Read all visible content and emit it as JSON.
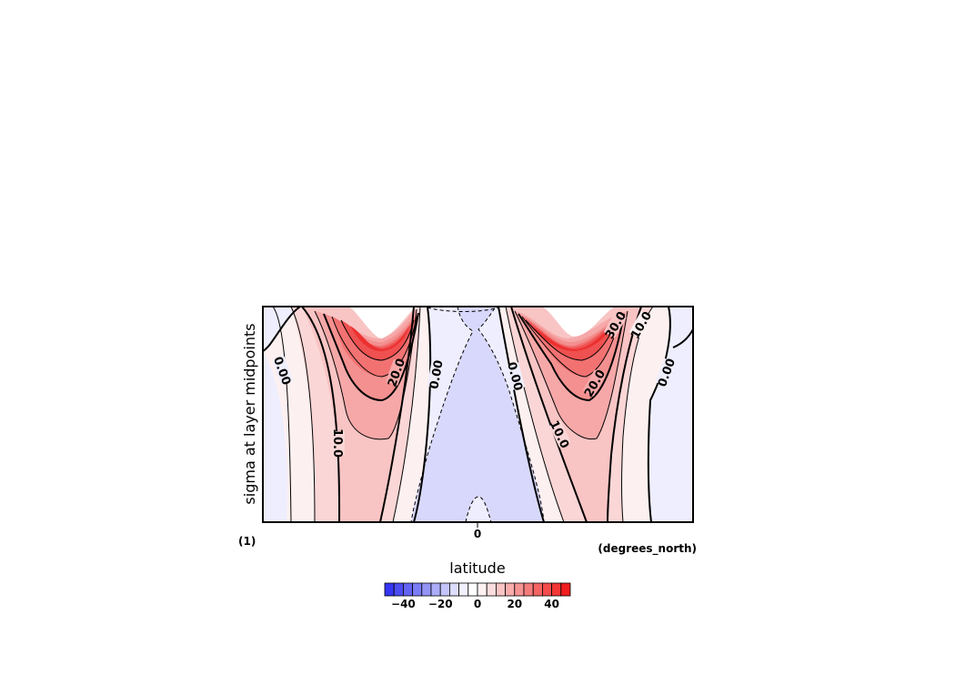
{
  "chart_data": {
    "type": "heatmap",
    "subtype": "filled-contour",
    "title": "",
    "xlabel": "latitude",
    "ylabel": "sigma at layer midpoints",
    "x_units": "(degrees_north)",
    "y_units": "(1)",
    "x_ticks": [
      "0"
    ],
    "x_range": [
      -90,
      90
    ],
    "y_range": [
      0,
      1
    ],
    "contour_interval": 5,
    "contour_labels": [
      "0.00",
      "10.0",
      "20.0",
      "0.00",
      "0.00",
      "20.0",
      "10.0",
      "30.0",
      "10.0",
      "0.00"
    ],
    "features": [
      {
        "name": "southern jet maximum",
        "sign": "positive",
        "max_contour": 45
      },
      {
        "name": "northern jet maximum",
        "sign": "positive",
        "max_contour": 45
      },
      {
        "name": "equatorial easterlies",
        "sign": "negative",
        "min_contour": -5
      }
    ],
    "colorbar": {
      "ticks": [
        "-40",
        "-20",
        "0",
        "20",
        "40"
      ],
      "min": -50,
      "max": 50,
      "colors": [
        "#3636f2",
        "#4c4cf3",
        "#6464f4",
        "#7c7cf5",
        "#9494f6",
        "#acacf8",
        "#c4c4fa",
        "#dcdcfc",
        "#f2f2fe",
        "#ffffff",
        "#fef2f2",
        "#fcdcdc",
        "#fac4c4",
        "#f8acac",
        "#f69494",
        "#f57c7c",
        "#f46464",
        "#f34c4c",
        "#f23636",
        "#f01e1e"
      ]
    },
    "grid": false
  }
}
